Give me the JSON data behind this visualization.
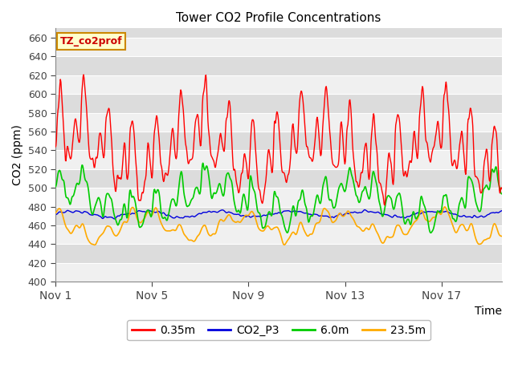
{
  "title": "Tower CO2 Profile Concentrations",
  "xlabel": "Time",
  "ylabel": "CO2 (ppm)",
  "ylim": [
    400,
    670
  ],
  "yticks": [
    400,
    420,
    440,
    460,
    480,
    500,
    520,
    540,
    560,
    580,
    600,
    620,
    640,
    660
  ],
  "xtick_labels": [
    "Nov 1",
    "Nov 5",
    "Nov 9",
    "Nov 13",
    "Nov 17"
  ],
  "xtick_positions": [
    0,
    4,
    8,
    12,
    16
  ],
  "xlim": [
    0,
    18.5
  ],
  "bg_color": "#ffffff",
  "plot_bg_light": "#f0f0f0",
  "plot_bg_dark": "#dcdcdc",
  "grid_color": "#ffffff",
  "series_colors": [
    "#ff0000",
    "#0000dd",
    "#00cc00",
    "#ffaa00"
  ],
  "series_labels": [
    "0.35m",
    "CO2_P3",
    "6.0m",
    "23.5m"
  ],
  "tag_text": "TZ_co2prof",
  "tag_bg": "#ffffcc",
  "tag_edge": "#cc8800",
  "tag_text_color": "#cc0000"
}
